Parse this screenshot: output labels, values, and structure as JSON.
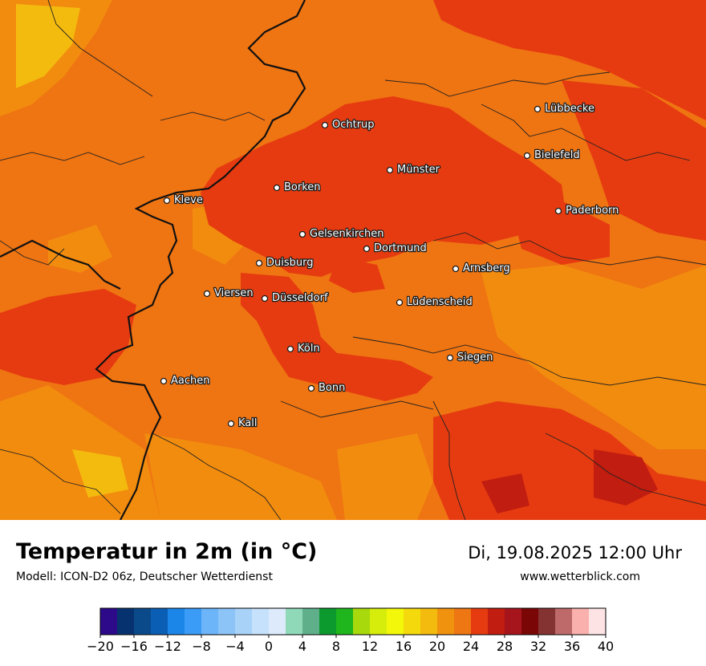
{
  "map": {
    "cities": [
      {
        "name": "Lübbecke"
      },
      {
        "name": "Ochtrup"
      },
      {
        "name": "Bielefeld"
      },
      {
        "name": "Münster"
      },
      {
        "name": "Borken"
      },
      {
        "name": "Kleve"
      },
      {
        "name": "Paderborn"
      },
      {
        "name": "Gelsenkirchen"
      },
      {
        "name": "Dortmund"
      },
      {
        "name": "Duisburg"
      },
      {
        "name": "Arnsberg"
      },
      {
        "name": "Viersen"
      },
      {
        "name": "Düsseldorf"
      },
      {
        "name": "Lüdenscheid"
      },
      {
        "name": "Köln"
      },
      {
        "name": "Siegen"
      },
      {
        "name": "Aachen"
      },
      {
        "name": "Bonn"
      },
      {
        "name": "Kall"
      }
    ]
  },
  "footer": {
    "title": "Temperatur in 2m (in °C)",
    "model": "Modell: ICON-D2 06z, Deutscher Wetterdienst",
    "datetime": "Di, 19.08.2025 12:00 Uhr",
    "website": "www.wetterblick.com"
  },
  "legend": {
    "colors": [
      "#2d0a8a",
      "#06336f",
      "#0a4a8a",
      "#0a5fb5",
      "#1c86e8",
      "#3a9cf6",
      "#6bb5f8",
      "#8cc4f8",
      "#a9d2f9",
      "#c6e1fb",
      "#dceafc",
      "#8fd8b8",
      "#5fb08a",
      "#0c9a2f",
      "#1fb51c",
      "#a7d90c",
      "#d6ec0b",
      "#f3f70a",
      "#f4d90d",
      "#f4bb0f",
      "#f1920f",
      "#ee7613",
      "#e63b10",
      "#c11d10",
      "#a6141c",
      "#7b0606",
      "#853232",
      "#bf6a6a",
      "#fab0ac",
      "#fde3e3"
    ],
    "tick_labels": [
      "−20",
      "−16",
      "−12",
      "−8",
      "−4",
      "0",
      "4",
      "8",
      "12",
      "16",
      "20",
      "24",
      "28",
      "32",
      "36",
      "40"
    ]
  },
  "palette": {
    "base": "#ef7412",
    "warm": "#e63b10",
    "hot": "#c11d10",
    "cool": "#f28c0e",
    "coolest": "#f3b80f"
  }
}
